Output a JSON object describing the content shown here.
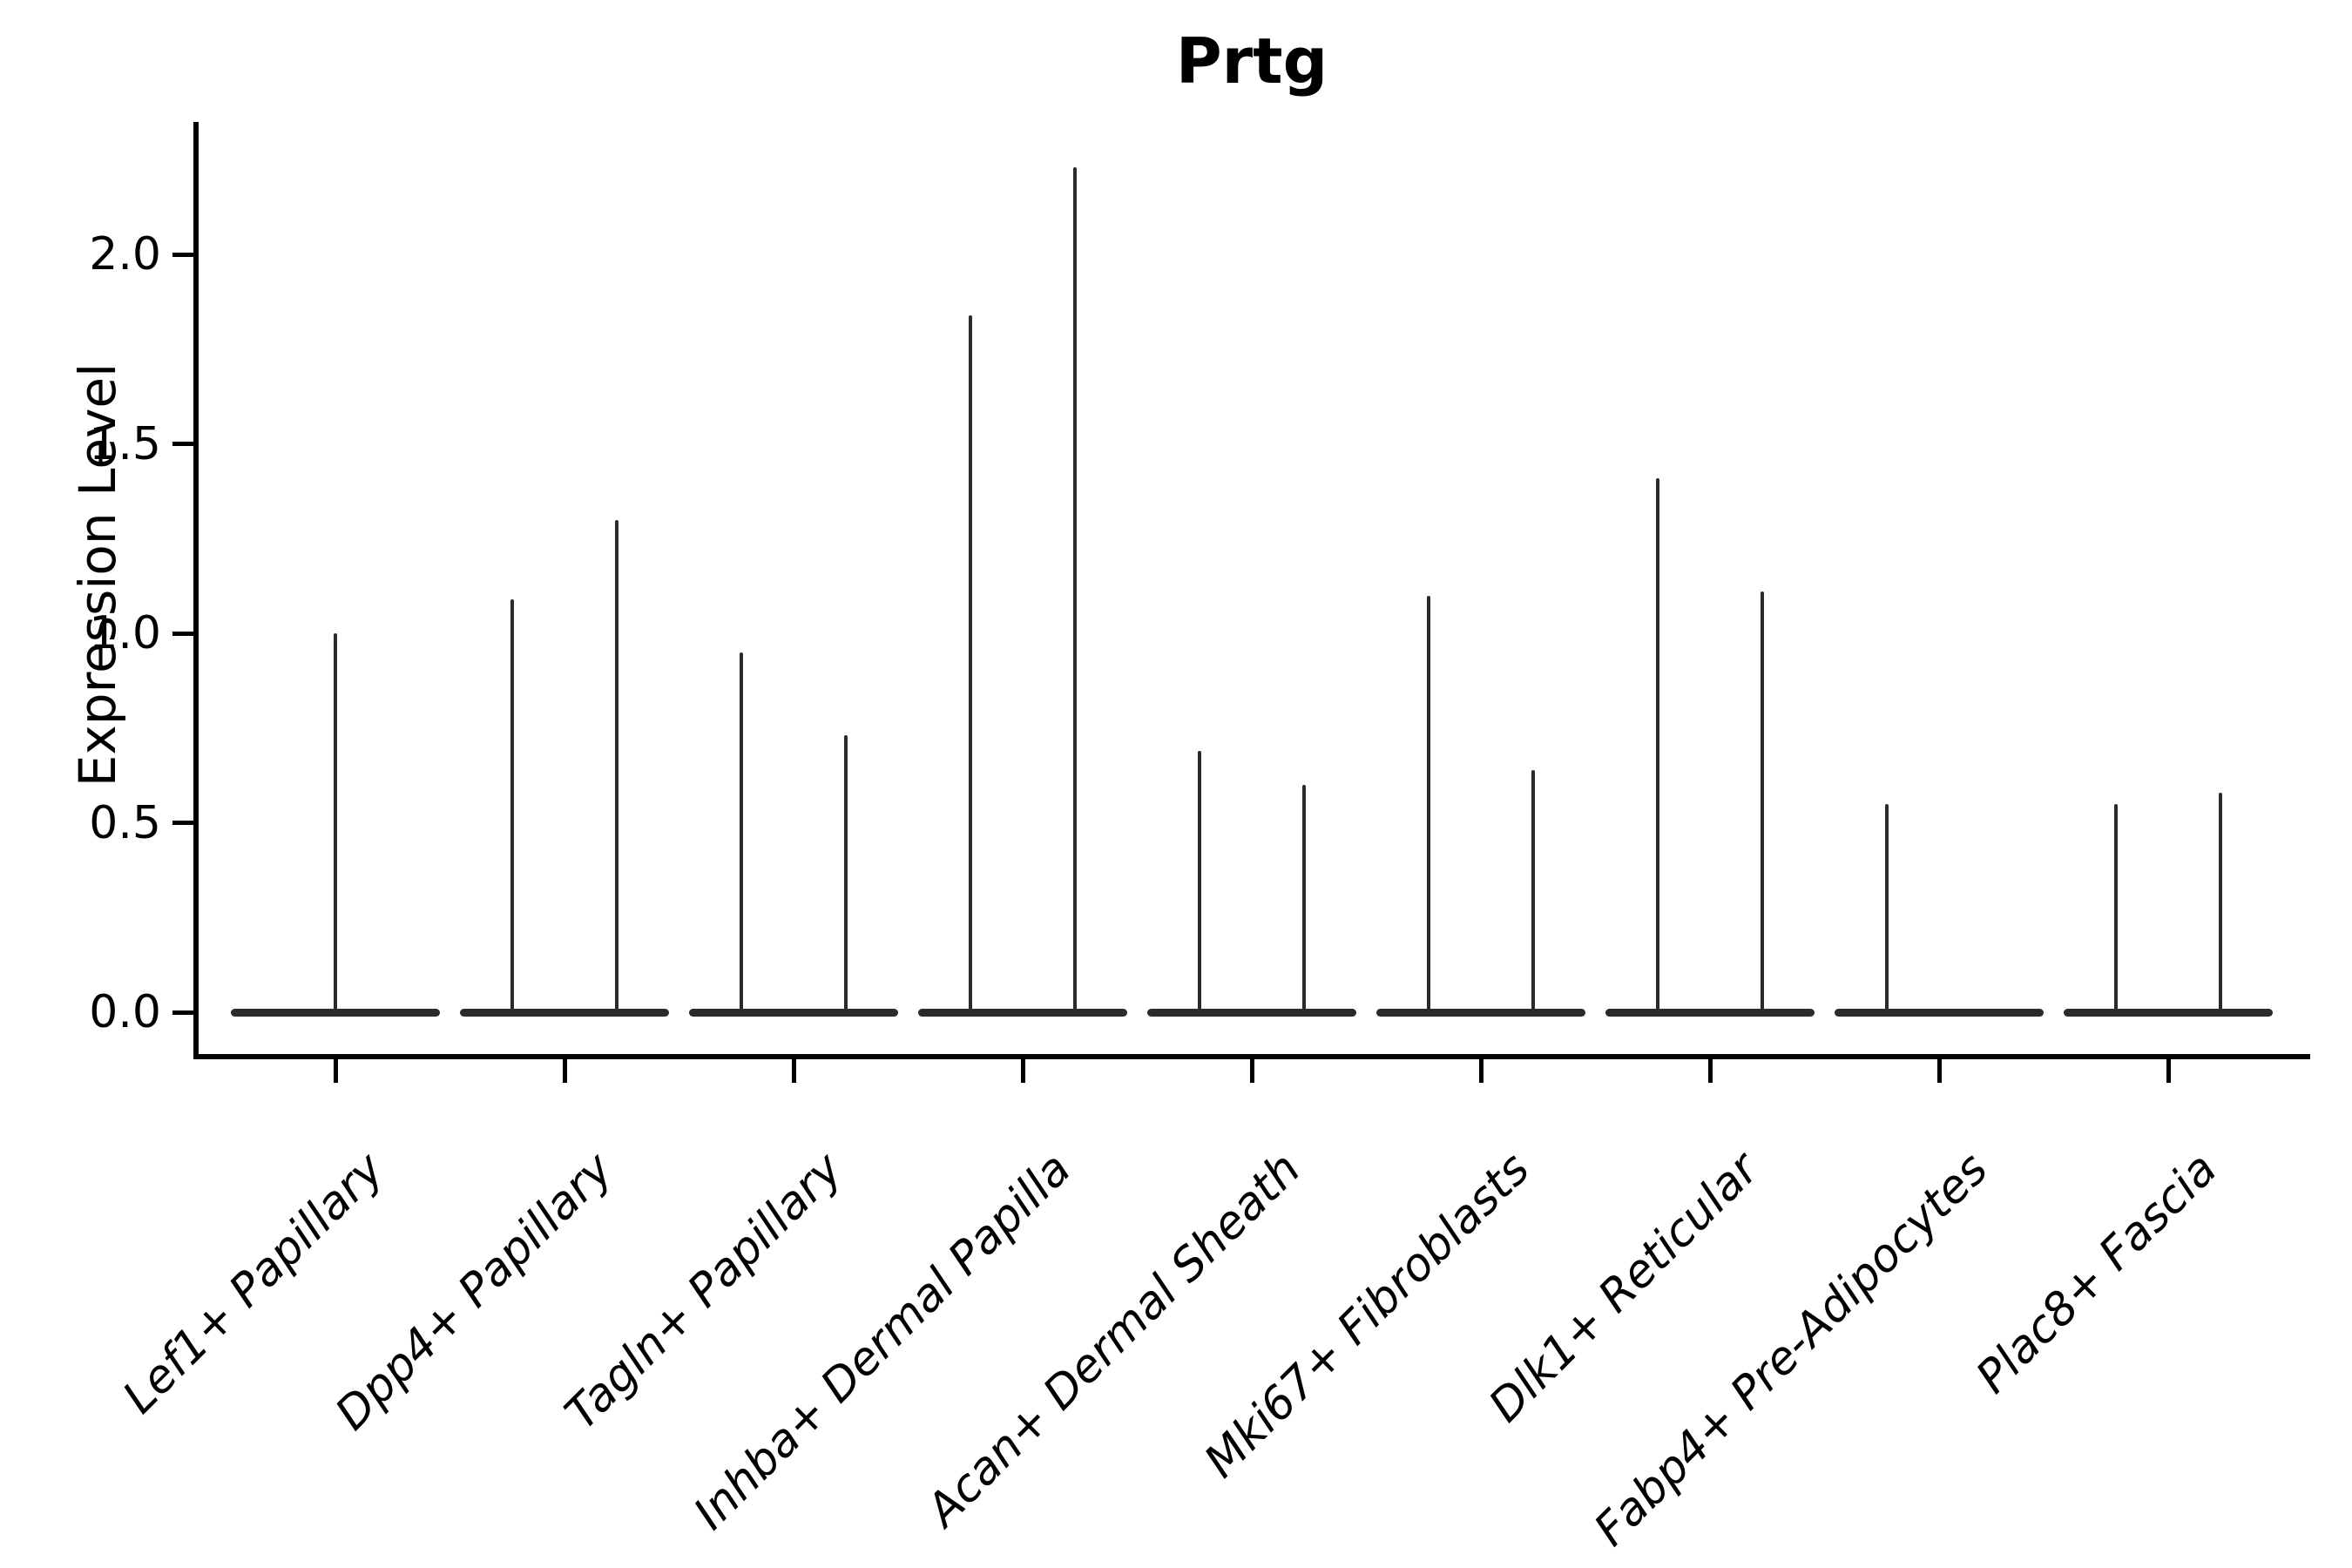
{
  "title": "Prtg",
  "y_axis": {
    "label": "Expression Level",
    "tick_labels": [
      "0.0",
      "0.5",
      "1.0",
      "1.5",
      "2.0"
    ],
    "tick_values": [
      0.0,
      0.5,
      1.0,
      1.5,
      2.0
    ]
  },
  "colors": {
    "violin_stroke": "#2b2b2b",
    "axis": "#000000",
    "background": "#ffffff"
  },
  "chart_data": {
    "type": "violin",
    "title": "Prtg",
    "xlabel": "",
    "ylabel": "Expression Level",
    "ylim": [
      -0.12,
      2.35
    ],
    "yticks": [
      0.0,
      0.5,
      1.0,
      1.5,
      2.0
    ],
    "grid": false,
    "legend": "none",
    "categories": [
      "Lef1+ Papillary",
      "Dpp4+ Papillary",
      "Tagln+ Papillary",
      "Inhba+ Dermal Papilla",
      "Acan+ Dermal Sheath",
      "Mki67+ Fibroblasts",
      "Dlk1+ Reticular",
      "Fabp4+ Pre-Adipocytes",
      "Plac8+ Fascia"
    ],
    "description": "Needle-thin violins: dense mass at expression 0 (flat bar) with thin spikes up to the max expression; most categories contain two side-by-side sub-violins (dx -1 = left, 0 = centered, 1 = right), spike height = max expression level",
    "violins": [
      {
        "category": "Lef1+ Papillary",
        "baseline": 0,
        "spikes": [
          {
            "dx": 0,
            "max": 1.0
          }
        ]
      },
      {
        "category": "Dpp4+ Papillary",
        "baseline": 0,
        "spikes": [
          {
            "dx": -1,
            "max": 1.09
          },
          {
            "dx": 1,
            "max": 1.3
          }
        ]
      },
      {
        "category": "Tagln+ Papillary",
        "baseline": 0,
        "spikes": [
          {
            "dx": -1,
            "max": 0.95
          },
          {
            "dx": 1,
            "max": 0.73
          }
        ]
      },
      {
        "category": "Inhba+ Dermal Papilla",
        "baseline": 0,
        "spikes": [
          {
            "dx": -1,
            "max": 1.84
          },
          {
            "dx": 1,
            "max": 2.23
          }
        ]
      },
      {
        "category": "Acan+ Dermal Sheath",
        "baseline": 0,
        "spikes": [
          {
            "dx": -1,
            "max": 0.69
          },
          {
            "dx": 1,
            "max": 0.6
          }
        ]
      },
      {
        "category": "Mki67+ Fibroblasts",
        "baseline": 0,
        "spikes": [
          {
            "dx": -1,
            "max": 1.1
          },
          {
            "dx": 1,
            "max": 0.64
          }
        ]
      },
      {
        "category": "Dlk1+ Reticular",
        "baseline": 0,
        "spikes": [
          {
            "dx": -1,
            "max": 1.41
          },
          {
            "dx": 1,
            "max": 1.11
          }
        ]
      },
      {
        "category": "Fabp4+ Pre-Adipocytes",
        "baseline": 0,
        "spikes": [
          {
            "dx": -1,
            "max": 0.55
          }
        ]
      },
      {
        "category": "Plac8+ Fascia",
        "baseline": 0,
        "spikes": [
          {
            "dx": -1,
            "max": 0.55
          },
          {
            "dx": 1,
            "max": 0.58
          }
        ]
      }
    ]
  }
}
